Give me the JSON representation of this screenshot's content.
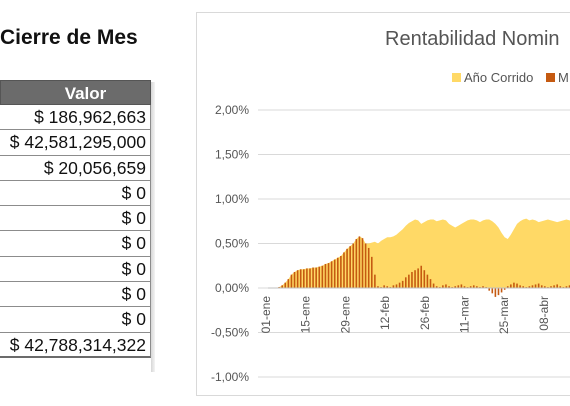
{
  "left_table": {
    "title": "Cierre de Mes",
    "header": "Valor",
    "rows": [
      "$ 186,962,663",
      "$ 42,581,295,000",
      "$ 20,056,659",
      "$ 0",
      "$ 0",
      "$ 0",
      "$ 0",
      "$ 0",
      "$ 0",
      "$ 42,788,314,322"
    ]
  },
  "colors": {
    "area": "#ffd966",
    "bars": "#c55a11",
    "header_bg": "#6b6b6b",
    "grid": "#d9d9d9"
  },
  "chart_data": {
    "type": "area",
    "title": "Rentabilidad Nomin",
    "legend": [
      "Año Corrido",
      "M"
    ],
    "legend_position": "top-right",
    "ylim": [
      -1.0,
      2.0
    ],
    "y_ticks": [
      "2,00%",
      "1,50%",
      "1,00%",
      "0,50%",
      "0,00%",
      "-0,50%",
      "-1,00%"
    ],
    "x_ticks": [
      "01-ene",
      "15-ene",
      "29-ene",
      "12-feb",
      "26-feb",
      "11-mar",
      "25-mar",
      "08-abr"
    ],
    "series": [
      {
        "name": "Año Corrido",
        "type": "area",
        "values": [
          0.0,
          0.01,
          0.03,
          0.06,
          0.1,
          0.15,
          0.18,
          0.2,
          0.21,
          0.21,
          0.22,
          0.22,
          0.23,
          0.23,
          0.24,
          0.25,
          0.27,
          0.28,
          0.3,
          0.32,
          0.34,
          0.36,
          0.4,
          0.44,
          0.47,
          0.5,
          0.55,
          0.58,
          0.56,
          0.5,
          0.5,
          0.51,
          0.52,
          0.5,
          0.53,
          0.55,
          0.57,
          0.57,
          0.58,
          0.6,
          0.63,
          0.66,
          0.7,
          0.73,
          0.75,
          0.77,
          0.76,
          0.72,
          0.74,
          0.76,
          0.77,
          0.77,
          0.75,
          0.76,
          0.77,
          0.76,
          0.72,
          0.7,
          0.68,
          0.7,
          0.72,
          0.74,
          0.76,
          0.77,
          0.77,
          0.76,
          0.74,
          0.76,
          0.77,
          0.77,
          0.75,
          0.72,
          0.68,
          0.62,
          0.57,
          0.55,
          0.6,
          0.66,
          0.72,
          0.75,
          0.77,
          0.78,
          0.76,
          0.77,
          0.76,
          0.74,
          0.75,
          0.76,
          0.77,
          0.76,
          0.75,
          0.74,
          0.75,
          0.76,
          0.77,
          0.76,
          0.75,
          0.76,
          0.77,
          0.76
        ]
      },
      {
        "name": "M",
        "type": "bar",
        "values": [
          0.0,
          0.01,
          0.03,
          0.06,
          0.1,
          0.15,
          0.18,
          0.2,
          0.21,
          0.21,
          0.22,
          0.22,
          0.23,
          0.23,
          0.24,
          0.25,
          0.27,
          0.28,
          0.3,
          0.32,
          0.34,
          0.36,
          0.4,
          0.44,
          0.47,
          0.5,
          0.55,
          0.58,
          0.56,
          0.5,
          0.45,
          0.35,
          0.15,
          0.02,
          0.01,
          0.03,
          0.02,
          0.01,
          0.03,
          0.04,
          0.06,
          0.08,
          0.12,
          0.15,
          0.18,
          0.2,
          0.22,
          0.25,
          0.2,
          0.15,
          0.1,
          0.05,
          0.02,
          0.01,
          0.03,
          0.04,
          0.02,
          0.01,
          0.02,
          0.03,
          0.04,
          0.02,
          0.01,
          0.02,
          0.03,
          0.02,
          0.01,
          0.02,
          0.01,
          -0.03,
          -0.06,
          -0.1,
          -0.08,
          -0.05,
          -0.02,
          0.02,
          0.04,
          0.06,
          0.05,
          0.03,
          0.02,
          0.01,
          0.02,
          0.03,
          0.04,
          0.05,
          0.03,
          0.02,
          0.01,
          0.02,
          0.03,
          0.04,
          0.02,
          0.01,
          0.02,
          0.03,
          0.02,
          0.01,
          0.02,
          0.01
        ]
      }
    ]
  }
}
